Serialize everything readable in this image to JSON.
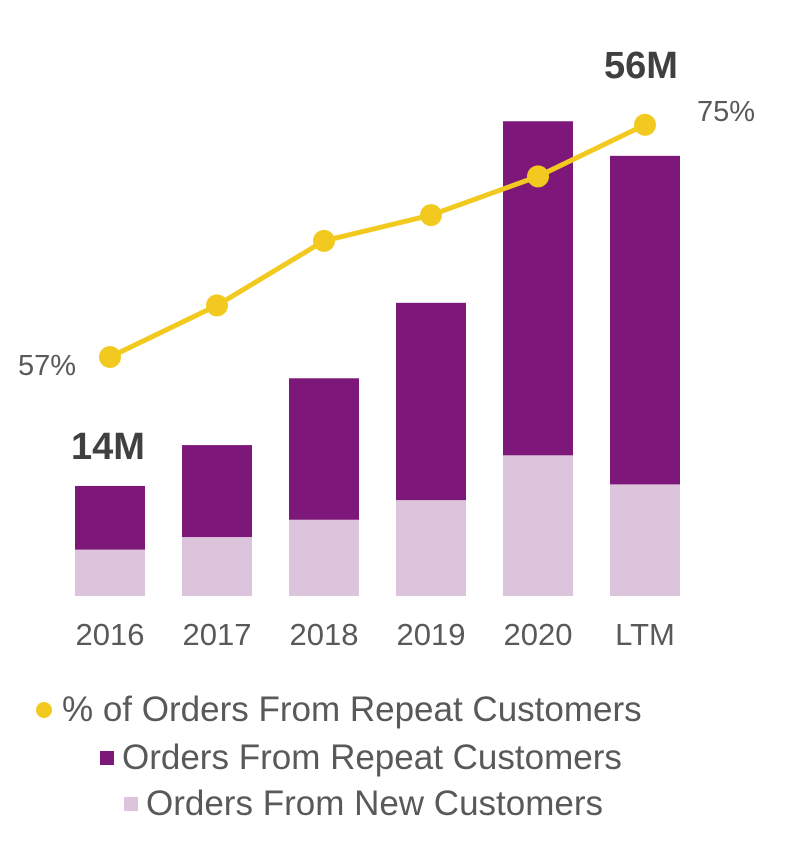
{
  "chart_data": {
    "type": "bar",
    "stacked": true,
    "categories": [
      "2016",
      "2017",
      "2018",
      "2019",
      "2020",
      "LTM"
    ],
    "series": [
      {
        "name": "Orders From New Customers",
        "unit": "M",
        "values": [
          5.9,
          7.5,
          9.7,
          12.2,
          17.9,
          14.2
        ],
        "color": "#DCC4DC"
      },
      {
        "name": "Orders From Repeat Customers",
        "unit": "M",
        "values": [
          8.1,
          11.7,
          18.0,
          25.1,
          42.5,
          41.8
        ],
        "color": "#7D1779"
      }
    ],
    "line_series": {
      "name": "% of Orders From Repeat Customers",
      "unit": "%",
      "values": [
        57,
        61,
        66,
        68,
        71,
        75
      ],
      "color": "#F2CA1F"
    },
    "annotations": {
      "first_total": "14M",
      "last_total": "56M",
      "first_pct": "57%",
      "last_pct": "75%"
    },
    "legend": [
      "% of Orders From Repeat Customers",
      "Orders From Repeat Customers",
      "Orders From New Customers"
    ],
    "legend_position": "bottom",
    "grid": false,
    "ylim": [
      0,
      62
    ]
  }
}
